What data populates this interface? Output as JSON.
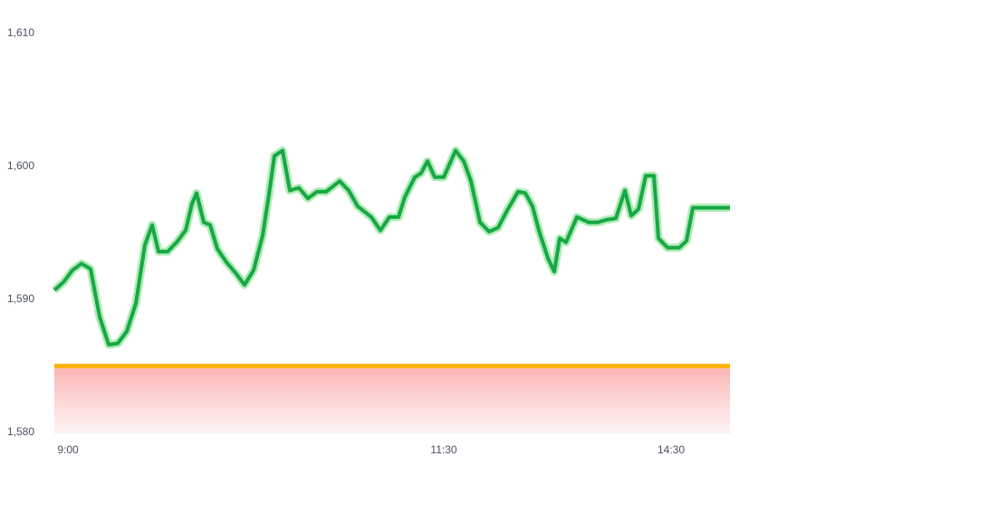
{
  "chart_data": {
    "type": "line",
    "x": [
      0,
      1,
      2,
      3,
      4,
      5,
      6,
      7,
      8,
      9,
      10,
      10.8,
      11.5,
      12.5,
      13.5,
      14.5,
      15.2,
      15.7,
      16.5,
      17.2,
      18,
      19,
      20,
      21,
      22,
      23,
      23.7,
      24.3,
      25.2,
      26,
      27,
      28,
      29,
      30,
      31.5,
      32.5,
      33.5,
      35,
      36,
      37,
      38,
      38.7,
      39.8,
      40.5,
      41.2,
      42,
      43,
      44.3,
      45.2,
      46,
      47,
      48,
      49,
      50,
      51.2,
      52,
      52.8,
      53.5,
      54.5,
      55.2,
      55.8,
      56.5,
      57.7,
      59,
      60,
      61,
      62,
      63,
      63.7,
      64.5,
      65.3,
      66.2,
      66.7,
      67.7,
      69,
      69.8,
      70.5,
      74.6
    ],
    "series": [
      {
        "color": "#17a844",
        "values": [
          1590.7,
          1591.3,
          1592.2,
          1592.7,
          1592.3,
          1588.7,
          1586.6,
          1586.7,
          1587.6,
          1589.7,
          1594.1,
          1595.6,
          1593.6,
          1593.6,
          1594.3,
          1595.2,
          1597.2,
          1598.0,
          1595.8,
          1595.6,
          1593.8,
          1592.8,
          1592.0,
          1591.1,
          1592.2,
          1594.8,
          1597.9,
          1600.8,
          1601.2,
          1598.2,
          1598.4,
          1597.6,
          1598.1,
          1598.1,
          1598.9,
          1598.2,
          1597.0,
          1596.2,
          1595.2,
          1596.2,
          1596.2,
          1597.7,
          1599.2,
          1599.5,
          1600.4,
          1599.2,
          1599.2,
          1601.2,
          1600.4,
          1598.9,
          1595.8,
          1595.1,
          1595.4,
          1596.7,
          1598.1,
          1598.0,
          1597.0,
          1595.2,
          1593.1,
          1592.1,
          1594.6,
          1594.3,
          1596.2,
          1595.8,
          1595.8,
          1596.0,
          1596.1,
          1598.2,
          1596.3,
          1596.8,
          1599.3,
          1599.3,
          1594.6,
          1593.9,
          1593.9,
          1594.4,
          1596.9,
          1596.9
        ]
      }
    ],
    "baseline": 1585,
    "baseline_color": "#ffb300",
    "xlim": [
      0,
      74.6
    ],
    "xticks": [
      {
        "value": 1.5,
        "label": "9:00"
      },
      {
        "value": 43,
        "label": "11:30"
      },
      {
        "value": 68.1,
        "label": "14:30"
      }
    ],
    "ylim": [
      1580,
      1610
    ],
    "yticks": [
      {
        "value": 1580,
        "label": "1,580"
      },
      {
        "value": 1590,
        "label": "1,590"
      },
      {
        "value": 1600,
        "label": "1,600"
      },
      {
        "value": 1610,
        "label": "1,610"
      }
    ]
  }
}
